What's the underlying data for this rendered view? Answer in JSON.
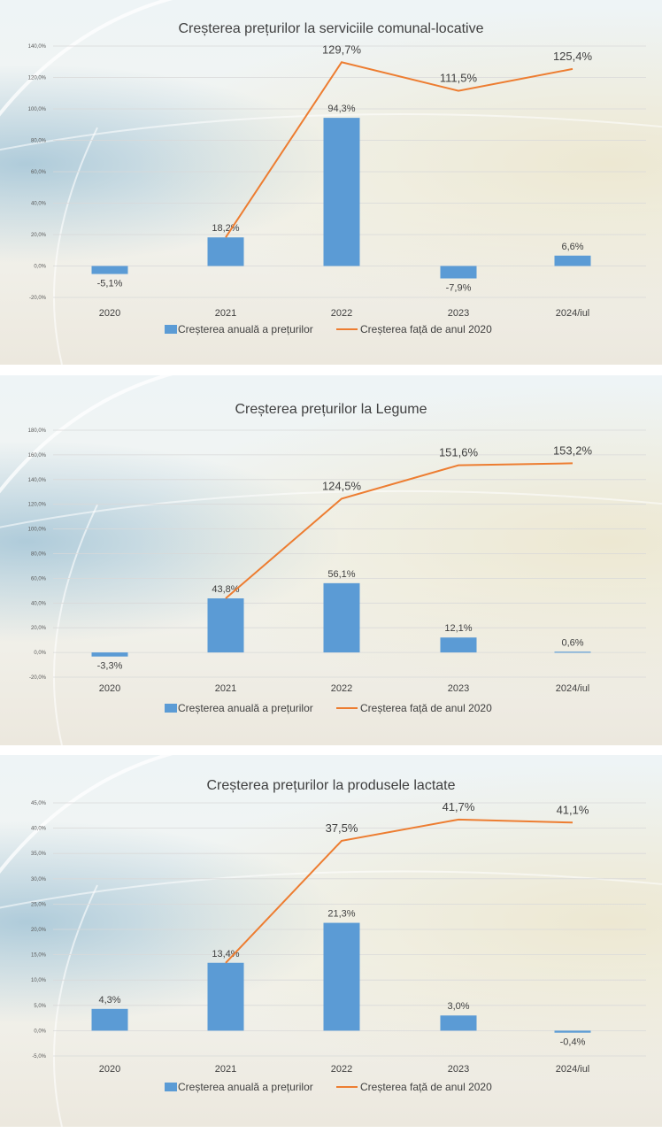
{
  "legend": {
    "bar_label": "Creșterea anuală a prețurilor",
    "line_label": "Creșterea față de anul 2020"
  },
  "colors": {
    "bar": "#5b9bd5",
    "line": "#ed7d31"
  },
  "chart_data": [
    {
      "type": "bar",
      "title": "Creșterea prețurilor la serviciile comunal-locative",
      "categories": [
        "2020",
        "2021",
        "2022",
        "2023",
        "2024/iul"
      ],
      "ylim": [
        -20,
        140
      ],
      "ystep": 20,
      "ytick_labels": [
        "-20,0%",
        "0,0%",
        "20,0%",
        "40,0%",
        "60,0%",
        "80,0%",
        "100,0%",
        "120,0%",
        "140,0%"
      ],
      "series": [
        {
          "name": "Creșterea anuală a prețurilor",
          "type": "bar",
          "values": [
            -5.1,
            18.2,
            94.3,
            -7.9,
            6.6
          ],
          "labels": [
            "-5,1%",
            "18,2%",
            "94,3%",
            "-7,9%",
            "6,6%"
          ]
        },
        {
          "name": "Creșterea față de anul 2020",
          "type": "line",
          "values": [
            null,
            18.2,
            129.7,
            111.5,
            125.4
          ],
          "labels": [
            "",
            "",
            "129,7%",
            "111,5%",
            "125,4%"
          ]
        }
      ],
      "grid": true,
      "legend_position": "bottom"
    },
    {
      "type": "bar",
      "title": "Creșterea prețurilor la Legume",
      "categories": [
        "2020",
        "2021",
        "2022",
        "2023",
        "2024/iul"
      ],
      "ylim": [
        -20,
        180
      ],
      "ystep": 20,
      "ytick_labels": [
        "-20,0%",
        "0,0%",
        "20,0%",
        "40,0%",
        "60,0%",
        "80,0%",
        "100,0%",
        "120,0%",
        "140,0%",
        "160,0%",
        "180,0%"
      ],
      "series": [
        {
          "name": "Creșterea anuală a prețurilor",
          "type": "bar",
          "values": [
            -3.3,
            43.8,
            56.1,
            12.1,
            0.6
          ],
          "labels": [
            "-3,3%",
            "43,8%",
            "56,1%",
            "12,1%",
            "0,6%"
          ]
        },
        {
          "name": "Creșterea față de anul 2020",
          "type": "line",
          "values": [
            null,
            43.8,
            124.5,
            151.6,
            153.2
          ],
          "labels": [
            "",
            "",
            "124,5%",
            "151,6%",
            "153,2%"
          ]
        }
      ],
      "grid": true,
      "legend_position": "bottom"
    },
    {
      "type": "bar",
      "title": "Creșterea prețurilor la produsele lactate",
      "categories": [
        "2020",
        "2021",
        "2022",
        "2023",
        "2024/iul"
      ],
      "ylim": [
        -5,
        45
      ],
      "ystep": 5,
      "ytick_labels": [
        "-5,0%",
        "0,0%",
        "5,0%",
        "10,0%",
        "15,0%",
        "20,0%",
        "25,0%",
        "30,0%",
        "35,0%",
        "40,0%",
        "45,0%"
      ],
      "series": [
        {
          "name": "Creșterea anuală a prețurilor",
          "type": "bar",
          "values": [
            4.3,
            13.4,
            21.3,
            3.0,
            -0.4
          ],
          "labels": [
            "4,3%",
            "13,4%",
            "21,3%",
            "3,0%",
            "-0,4%"
          ]
        },
        {
          "name": "Creșterea față de anul 2020",
          "type": "line",
          "values": [
            null,
            13.4,
            37.5,
            41.7,
            41.1
          ],
          "labels": [
            "",
            "",
            "37,5%",
            "41,7%",
            "41,1%"
          ]
        }
      ],
      "grid": true,
      "legend_position": "bottom"
    }
  ]
}
